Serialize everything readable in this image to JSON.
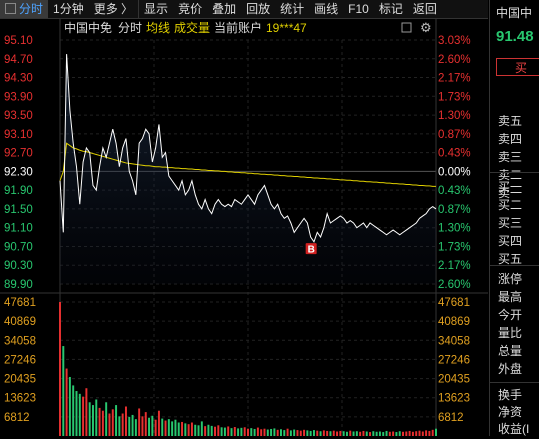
{
  "toolbar": {
    "items": [
      "分时",
      "1分钟",
      "更多 〉",
      "显示",
      "竞价",
      "叠加",
      "回放",
      "统计",
      "画线",
      "F10",
      "标记",
      "返回"
    ]
  },
  "header": {
    "stock_name": "中国中免",
    "mode": "分时",
    "avg_label": "均线",
    "volume_label": "成交量",
    "account_label": "当前账户",
    "account_value": "19***47"
  },
  "colors": {
    "up": "#e83030",
    "down": "#28c76f",
    "avg_line": "#e0d000",
    "price_line": "#ffffff",
    "volume_tick": "#e0a020",
    "flat": "#ffffff"
  },
  "axes": {
    "price_ticks": [
      "95.10",
      "94.70",
      "94.30",
      "93.90",
      "93.50",
      "93.10",
      "92.70",
      "92.30",
      "91.90",
      "91.50",
      "91.10",
      "90.70",
      "90.30",
      "89.90"
    ],
    "pct_ticks": [
      "3.03%",
      "2.60%",
      "2.17%",
      "1.73%",
      "1.30%",
      "0.87%",
      "0.43%",
      "0.00%",
      "0.43%",
      "0.87%",
      "1.30%",
      "1.73%",
      "2.17%",
      "2.60%"
    ],
    "volume_ticks": [
      "47681",
      "40869",
      "34058",
      "27246",
      "20435",
      "13623",
      "6812"
    ]
  },
  "chart_data": {
    "type": "line",
    "prev_close": 92.3,
    "ylim": [
      89.9,
      95.1
    ],
    "series": [
      {
        "values": [
          92.1,
          91.0,
          94.8,
          93.6,
          92.9,
          92.4,
          91.6,
          92.5,
          92.8,
          92.7,
          92.0,
          91.9,
          92.4,
          92.8,
          92.6,
          92.9,
          93.2,
          92.9,
          92.4,
          92.8,
          93.0,
          92.3,
          92.1,
          91.8,
          92.9,
          93.0,
          93.2,
          93.1,
          92.5,
          92.8,
          93.3,
          92.6,
          92.7,
          92.2,
          92.1,
          92.0,
          91.9,
          92.1,
          91.8,
          91.9,
          92.1,
          91.8,
          91.6,
          91.5,
          91.7,
          91.5,
          91.4,
          91.6,
          91.7,
          91.6,
          91.55,
          91.6,
          91.55,
          91.7,
          91.65,
          91.6,
          91.7,
          91.8,
          91.7,
          91.6,
          91.8,
          91.9,
          92.0,
          91.8,
          91.6,
          91.5,
          91.6,
          91.4,
          91.3,
          91.35,
          91.2,
          91.0,
          91.1,
          91.2,
          91.3,
          91.2,
          90.9,
          90.8,
          91.0,
          90.9,
          91.1,
          91.4,
          91.2,
          91.25,
          91.3,
          91.35,
          91.3,
          91.2,
          91.25,
          91.2,
          91.1,
          91.15,
          91.2,
          91.1,
          91.2,
          91.15,
          91.1,
          91.05,
          91.0,
          90.95,
          91.0,
          91.05,
          91.0,
          90.95,
          91.0,
          91.05,
          91.1,
          91.15,
          91.2,
          91.3,
          91.35,
          91.4,
          91.5,
          91.55,
          91.5
        ]
      },
      {
        "values": [
          92.1,
          92.3,
          92.9,
          92.85,
          92.8,
          92.78,
          92.75,
          92.73,
          92.72,
          92.7,
          92.68,
          92.66,
          92.64,
          92.62,
          92.6,
          92.58,
          92.56,
          92.54,
          92.52,
          92.5,
          92.48,
          92.47,
          92.46,
          92.45,
          92.44,
          92.43,
          92.42,
          92.42,
          92.41,
          92.4,
          92.4,
          92.39,
          92.39,
          92.38,
          92.38,
          92.37,
          92.37,
          92.36,
          92.36,
          92.35,
          92.35,
          92.34,
          92.34,
          92.33,
          92.33,
          92.32,
          92.32,
          92.31,
          92.31,
          92.3,
          92.3,
          92.29,
          92.29,
          92.28,
          92.28,
          92.27,
          92.27,
          92.26,
          92.26,
          92.25,
          92.25,
          92.24,
          92.24,
          92.23,
          92.23,
          92.22,
          92.22,
          92.21,
          92.21,
          92.2,
          92.2,
          92.19,
          92.19,
          92.18,
          92.18,
          92.17,
          92.17,
          92.16,
          92.16,
          92.15,
          92.15,
          92.14,
          92.14,
          92.13,
          92.13,
          92.12,
          92.12,
          92.11,
          92.11,
          92.1,
          92.1,
          92.09,
          92.09,
          92.08,
          92.08,
          92.07,
          92.07,
          92.06,
          92.06,
          92.05,
          92.05,
          92.04,
          92.04,
          92.03,
          92.03,
          92.02,
          92.02,
          92.01,
          92.01,
          92.0,
          92.0,
          91.99,
          91.99,
          91.98,
          91.98
        ]
      }
    ],
    "volume": [
      47681,
      32000,
      24000,
      21000,
      18000,
      16000,
      15000,
      14000,
      17000,
      12000,
      11000,
      13000,
      10000,
      9000,
      12000,
      8000,
      9500,
      11000,
      7000,
      8000,
      10500,
      6800,
      7500,
      6000,
      9800,
      7000,
      8500,
      6500,
      7200,
      5800,
      9000,
      6200,
      5500,
      6000,
      5200,
      5800,
      4800,
      5000,
      4500,
      4200,
      4800,
      4000,
      3800,
      5200,
      3500,
      4000,
      3600,
      3300,
      3800,
      3100,
      3000,
      3400,
      2800,
      3200,
      2700,
      2900,
      3100,
      2600,
      2800,
      2500,
      3000,
      2400,
      2600,
      2300,
      2500,
      2700,
      2200,
      2400,
      2100,
      2600,
      2000,
      2300,
      2100,
      1900,
      2200,
      2000,
      1800,
      2100,
      1900,
      1700,
      2000,
      1800,
      1700,
      1900,
      1600,
      1800,
      1700,
      1500,
      1900,
      1600,
      1700,
      1500,
      1800,
      1600,
      1400,
      1700,
      1500,
      1600,
      1400,
      1800,
      1500,
      1600,
      1400,
      1700,
      1500,
      1600,
      1800,
      1500,
      1700,
      1900,
      1600,
      2000,
      1800,
      2200,
      2600
    ],
    "markers": [
      {
        "label": "B",
        "index": 76
      }
    ]
  },
  "side_panel": {
    "name": "中国中",
    "price": "91.48",
    "buy_button": "买",
    "sell_rows": [
      "卖五",
      "卖四",
      "卖三",
      "卖二",
      "卖一"
    ],
    "buy_rows": [
      "买一",
      "买二",
      "买三",
      "买四",
      "买五"
    ],
    "stat_rows": [
      "涨停",
      "最高",
      "今开",
      "量比",
      "总量",
      "外盘"
    ],
    "extra_rows": [
      "换手",
      "净资",
      "收益(I"
    ]
  }
}
